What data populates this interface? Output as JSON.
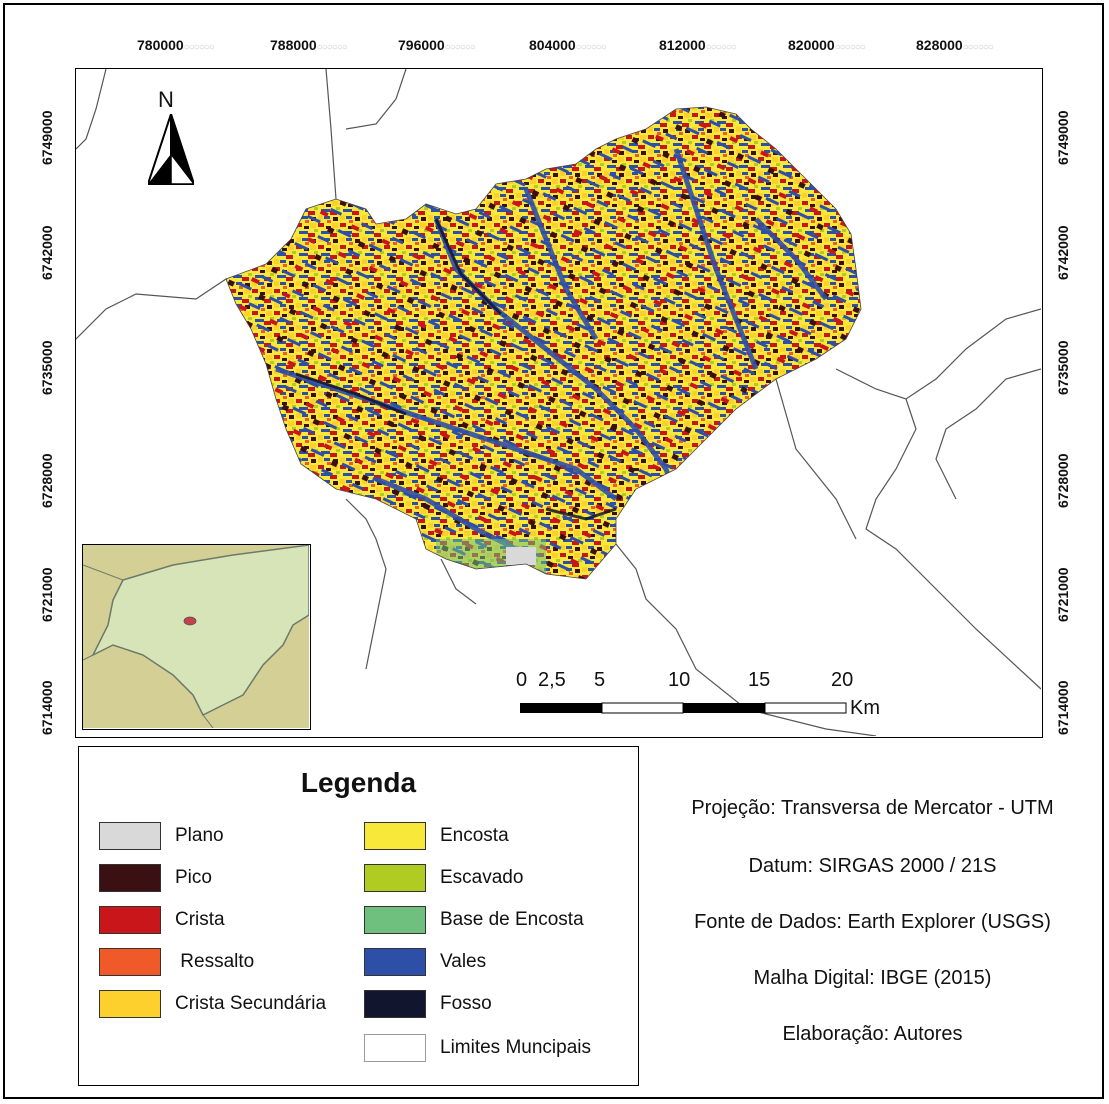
{
  "grid": {
    "x_ticks": [
      "780000",
      "788000",
      "796000",
      "804000",
      "812000",
      "820000",
      "828000"
    ],
    "y_ticks": [
      "6749000",
      "6742000",
      "6735000",
      "6728000",
      "6721000",
      "6714000"
    ]
  },
  "north_arrow": {
    "letter": "N",
    "icon": "north-arrow-icon"
  },
  "scale": {
    "labels": [
      "0",
      "2,5",
      "5",
      "10",
      "15",
      "20"
    ],
    "values": [
      0,
      2.5,
      5,
      10,
      15,
      20
    ],
    "unit": "Km"
  },
  "legend": {
    "title": "Legenda",
    "items": [
      {
        "label": "Plano",
        "color": "#d9d9d9"
      },
      {
        "label": "Pico",
        "color": "#3a1012"
      },
      {
        "label": "Crista",
        "color": "#c8161b"
      },
      {
        "label": " Ressalto",
        "color": "#f05a28"
      },
      {
        "label": "Crista Secundária",
        "color": "#fdd02e"
      },
      {
        "label": "Encosta",
        "color": "#f7e83a"
      },
      {
        "label": "Escavado",
        "color": "#b0cc22"
      },
      {
        "label": "Base de Encosta",
        "color": "#6fbf7f"
      },
      {
        "label": "Vales",
        "color": "#2e4fa8"
      },
      {
        "label": "Fosso",
        "color": "#12152e"
      },
      {
        "label": "Limites Muncipais",
        "color": "#ffffff"
      }
    ]
  },
  "info": {
    "lines": [
      "Projeção: Transversa de Mercator - UTM",
      "Datum: SIRGAS 2000 / 21S",
      "Fonte de Dados: Earth Explorer (USGS)",
      "Malha Digital: IBGE (2015)",
      "Elaboração: Autores"
    ]
  },
  "inset": {
    "colors": {
      "land": "#d6e4b8",
      "other": "#d4cf94",
      "highlight": "#c4424a",
      "border": "#6b7a6b"
    }
  }
}
